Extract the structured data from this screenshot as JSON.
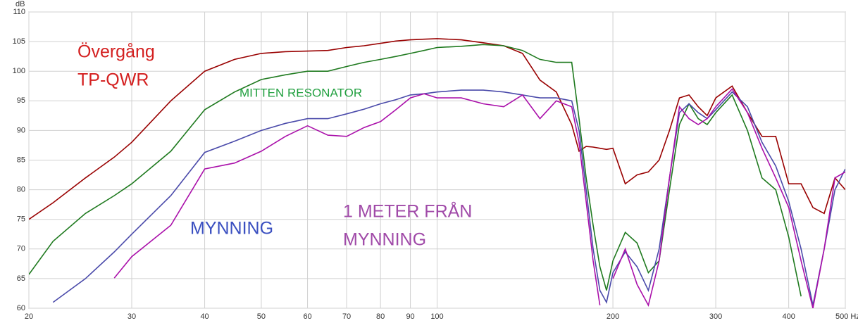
{
  "chart_data": {
    "type": "line",
    "ylabel": "dB",
    "log_x": true,
    "grid": true,
    "xlim": [
      20,
      500
    ],
    "ylim": [
      60,
      110
    ],
    "xticks": [
      20,
      30,
      40,
      50,
      60,
      70,
      80,
      90,
      100,
      200,
      300,
      400,
      {
        "value": 500,
        "label": "500 Hz"
      }
    ],
    "yticks": [
      60,
      65,
      70,
      75,
      80,
      85,
      90,
      95,
      100,
      105,
      110
    ],
    "x": [
      20,
      22,
      25,
      28,
      30,
      35,
      40,
      45,
      50,
      55,
      60,
      65,
      70,
      75,
      80,
      85,
      90,
      95,
      100,
      110,
      120,
      130,
      140,
      150,
      160,
      170,
      175,
      180,
      185,
      190,
      195,
      200,
      210,
      220,
      230,
      240,
      250,
      260,
      270,
      280,
      290,
      300,
      320,
      340,
      360,
      380,
      400,
      420,
      440,
      460,
      480,
      500
    ],
    "series": [
      {
        "color": "#990000",
        "values": [
          75,
          77.8,
          82,
          85.5,
          88,
          95,
          100,
          102,
          103,
          103.3,
          103.4,
          103.5,
          104,
          104.3,
          104.7,
          105.1,
          105.3,
          105.4,
          105.5,
          105.3,
          104.8,
          104.3,
          103,
          98.5,
          96.5,
          91,
          86.5,
          87.3,
          87.2,
          87,
          86.8,
          87,
          81,
          82.5,
          83,
          85,
          90,
          95.5,
          96,
          94,
          92.5,
          95.5,
          97.5,
          93,
          89,
          89,
          81,
          81,
          77,
          76,
          82,
          80
        ]
      },
      {
        "color": "#1f7a1f",
        "values": [
          65.7,
          71.3,
          76,
          79,
          81,
          86.5,
          93.5,
          96.5,
          98.6,
          99.4,
          100,
          100,
          100.8,
          101.5,
          102,
          102.5,
          103,
          103.5,
          104,
          104.2,
          104.5,
          104.3,
          103.5,
          102,
          101.5,
          101.5,
          92,
          82,
          74,
          67,
          63,
          68,
          72.8,
          71,
          66,
          68,
          80,
          91,
          94.5,
          92,
          91,
          93,
          96,
          90,
          82,
          80,
          72,
          62,
          null,
          null,
          null,
          null
        ]
      },
      {
        "color": "#4a4aaa",
        "values": [
          null,
          61,
          65,
          69.5,
          72.5,
          79,
          86.3,
          88.2,
          90,
          91.2,
          92,
          92,
          92.8,
          93.6,
          94.5,
          95.2,
          96,
          96.2,
          96.5,
          96.8,
          96.8,
          96.5,
          96,
          95.5,
          95.5,
          95,
          90,
          80,
          70,
          63,
          61,
          66,
          69.5,
          67,
          63,
          70,
          82,
          93,
          94.5,
          93,
          92,
          93.5,
          96.5,
          94,
          88,
          84,
          78,
          70,
          60.5,
          70,
          80,
          83.5
        ]
      },
      {
        "color": "#aa10aa",
        "values": [
          null,
          null,
          null,
          65.1,
          68.7,
          74,
          83.5,
          84.5,
          86.5,
          89,
          90.8,
          89.2,
          89,
          90.5,
          91.5,
          93.5,
          95.5,
          96.2,
          95.5,
          95.5,
          94.5,
          94,
          96,
          92,
          95,
          94,
          88,
          78,
          68,
          60.5,
          null,
          65,
          70,
          64,
          60.5,
          68,
          82,
          94,
          92,
          91,
          92,
          94,
          97,
          93,
          87,
          82,
          77,
          68,
          60,
          70,
          82,
          83
        ]
      }
    ],
    "annotations": [
      {
        "text": "Övergång",
        "color": "#d42020"
      },
      {
        "text": "TP-QWR",
        "color": "#d42020"
      },
      {
        "text": "MITTEN RESONATOR",
        "color": "#22a040"
      },
      {
        "text": "MYNNING",
        "color": "#3a4fc0"
      },
      {
        "text": "1 METER FRÅN",
        "color": "#a04aa8"
      },
      {
        "text": "MYNNING",
        "color": "#a04aa8"
      }
    ]
  }
}
